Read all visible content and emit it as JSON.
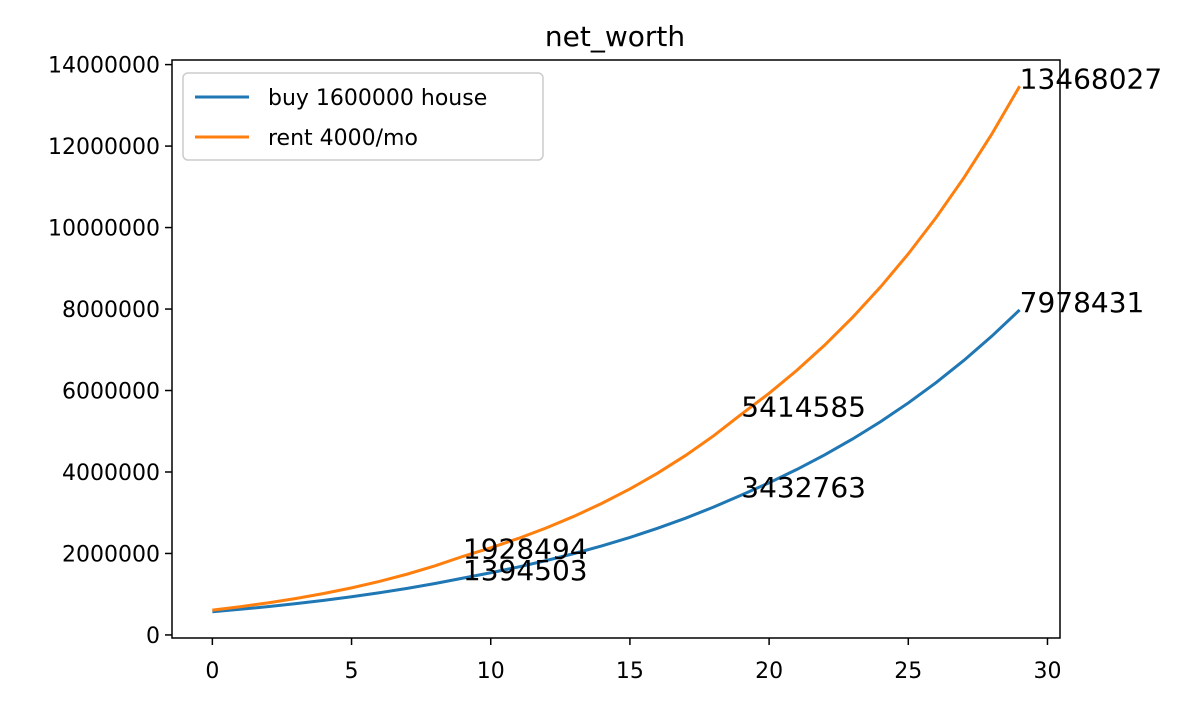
{
  "chart_data": {
    "type": "line",
    "title": "net_worth",
    "x": [
      0,
      1,
      2,
      3,
      4,
      5,
      6,
      7,
      8,
      9,
      10,
      11,
      12,
      13,
      14,
      15,
      16,
      17,
      18,
      19,
      20,
      21,
      22,
      23,
      24,
      25,
      26,
      27,
      28,
      29
    ],
    "series": [
      {
        "name": "buy 1600000 house",
        "color": "#1f77b4",
        "values": [
          570000,
          629565,
          695354,
          768019,
          848277,
          936922,
          1034830,
          1142970,
          1262410,
          1394503,
          1525950,
          1669790,
          1827180,
          1999410,
          2187870,
          2394100,
          2619770,
          2866710,
          3136920,
          3432763,
          3734880,
          4063590,
          4421240,
          4810360,
          5233730,
          5694360,
          6195530,
          6740810,
          7334070,
          7978431
        ]
      },
      {
        "name": "rent 4000/mo",
        "color": "#ff7f0e",
        "values": [
          610000,
          693200,
          787750,
          895200,
          1017300,
          1156070,
          1313760,
          1492960,
          1696600,
          1928494,
          2138310,
          2370960,
          2628920,
          2914950,
          3232090,
          3583740,
          3973650,
          4405980,
          4885350,
          5414585,
          5931140,
          6496970,
          7116780,
          7795720,
          8539430,
          9354090,
          10246470,
          11223980,
          12294740,
          13468027
        ]
      }
    ],
    "annotations": [
      {
        "x": 9,
        "y": 1394503
      },
      {
        "x": 19,
        "y": 3432763
      },
      {
        "x": 29,
        "y": 7978431
      },
      {
        "x": 9,
        "y": 1928494
      },
      {
        "x": 19,
        "y": 5414585
      },
      {
        "x": 29,
        "y": 13468027
      }
    ],
    "xlim": [
      -1.45,
      30.45
    ],
    "xticks": [
      0,
      5,
      10,
      15,
      20,
      25,
      30
    ],
    "ylim": [
      -75000,
      14113000
    ],
    "yticks": [
      0,
      2000000,
      4000000,
      6000000,
      8000000,
      10000000,
      12000000,
      14000000
    ],
    "legend": "upper left"
  }
}
